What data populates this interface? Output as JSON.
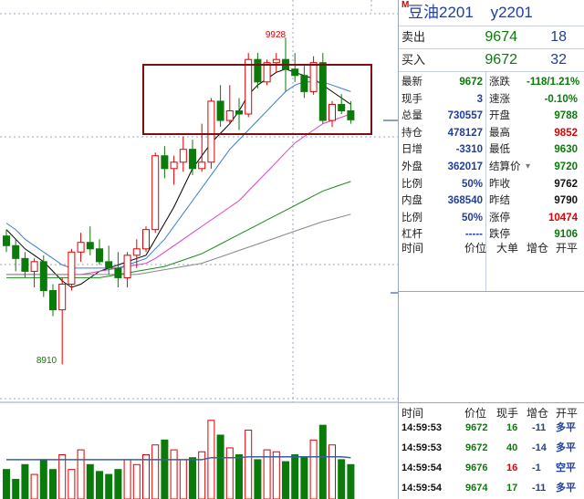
{
  "header": {
    "marker": "M",
    "name": "豆油2201",
    "code": "y2201"
  },
  "bid_ask": [
    {
      "label": "卖出",
      "price": "9674",
      "volume": "18"
    },
    {
      "label": "买入",
      "price": "9672",
      "volume": "32"
    }
  ],
  "quote_left": [
    {
      "label": "最新",
      "value": "9672",
      "color": "green"
    },
    {
      "label": "现手",
      "value": "3",
      "color": "blue"
    },
    {
      "label": "总量",
      "value": "730557",
      "color": "blue"
    },
    {
      "label": "持仓",
      "value": "478127",
      "color": "blue"
    },
    {
      "label": "日增",
      "value": "-3310",
      "color": "blue"
    },
    {
      "label": "外盘",
      "value": "362017",
      "color": "blue"
    },
    {
      "label": "比例",
      "value": "50%",
      "color": "blue"
    },
    {
      "label": "内盘",
      "value": "368540",
      "color": "blue"
    },
    {
      "label": "比例",
      "value": "50%",
      "color": "blue"
    },
    {
      "label": "杠杆",
      "value": "-----",
      "color": "blue"
    }
  ],
  "quote_right": [
    {
      "label": "涨跌",
      "value": "-118/1.21%",
      "color": "green"
    },
    {
      "label": "速涨",
      "value": "-0.10%",
      "color": "green"
    },
    {
      "label": "开盘",
      "value": "9788",
      "color": "green"
    },
    {
      "label": "最高",
      "value": "9852",
      "color": "red"
    },
    {
      "label": "最低",
      "value": "9630",
      "color": "green"
    },
    {
      "label": "结算价",
      "value": "9720",
      "color": "green"
    },
    {
      "label": "昨收",
      "value": "9762",
      "color": "blk"
    },
    {
      "label": "昨结",
      "value": "9790",
      "color": "blk"
    },
    {
      "label": "涨停",
      "value": "10474",
      "color": "red"
    },
    {
      "label": "跌停",
      "value": "9106",
      "color": "green"
    }
  ],
  "settle_arrow": "▾",
  "ticks_header_top": {
    "time": "时间",
    "price": "价位",
    "size": "大单",
    "oi": "增仓",
    "type": "开平"
  },
  "ticks_header_bottom": {
    "time": "时间",
    "price": "价位",
    "size": "现手",
    "oi": "增仓",
    "type": "开平"
  },
  "trades": [
    {
      "time": "14:59:53",
      "price": "9672",
      "size": "16",
      "oi": "-11",
      "type": "多平",
      "size_color": "green",
      "oi_color": "blue"
    },
    {
      "time": "14:59:53",
      "price": "9672",
      "size": "40",
      "oi": "-14",
      "type": "多平",
      "size_color": "green",
      "oi_color": "blue"
    },
    {
      "time": "14:59:54",
      "price": "9676",
      "size": "16",
      "oi": "-1",
      "type": "空平",
      "size_color": "red",
      "oi_color": "blue"
    },
    {
      "time": "14:59:54",
      "price": "9674",
      "size": "17",
      "oi": "-11",
      "type": "多平",
      "size_color": "green",
      "oi_color": "blue"
    }
  ],
  "chart_data": {
    "type": "candlestick",
    "annotations": {
      "high": "9928",
      "low": "8910"
    },
    "candles": [
      [
        9310,
        9330,
        9260,
        9280
      ],
      [
        9280,
        9300,
        9200,
        9240
      ],
      [
        9240,
        9260,
        9180,
        9200
      ],
      [
        9200,
        9240,
        9150,
        9230
      ],
      [
        9230,
        9250,
        9120,
        9140
      ],
      [
        9140,
        9160,
        9060,
        9080
      ],
      [
        9080,
        9180,
        8910,
        9160
      ],
      [
        9160,
        9270,
        9140,
        9260
      ],
      [
        9260,
        9320,
        9230,
        9290
      ],
      [
        9290,
        9340,
        9250,
        9270
      ],
      [
        9270,
        9300,
        9220,
        9230
      ],
      [
        9230,
        9280,
        9190,
        9210
      ],
      [
        9210,
        9260,
        9150,
        9180
      ],
      [
        9180,
        9260,
        9150,
        9250
      ],
      [
        9250,
        9300,
        9210,
        9270
      ],
      [
        9270,
        9340,
        9260,
        9330
      ],
      [
        9330,
        9570,
        9320,
        9560
      ],
      [
        9560,
        9590,
        9490,
        9520
      ],
      [
        9520,
        9560,
        9470,
        9540
      ],
      [
        9540,
        9620,
        9510,
        9580
      ],
      [
        9580,
        9610,
        9500,
        9520
      ],
      [
        9520,
        9660,
        9510,
        9540
      ],
      [
        9540,
        9740,
        9520,
        9730
      ],
      [
        9730,
        9780,
        9650,
        9670
      ],
      [
        9670,
        9780,
        9660,
        9700
      ],
      [
        9700,
        9740,
        9640,
        9690
      ],
      [
        9690,
        9880,
        9680,
        9860
      ],
      [
        9860,
        9880,
        9770,
        9790
      ],
      [
        9790,
        9860,
        9780,
        9850
      ],
      [
        9850,
        9880,
        9820,
        9860
      ],
      [
        9860,
        9928,
        9760,
        9830
      ],
      [
        9830,
        9880,
        9790,
        9810
      ],
      [
        9810,
        9840,
        9740,
        9760
      ],
      [
        9760,
        9870,
        9750,
        9850
      ],
      [
        9850,
        9880,
        9660,
        9670
      ],
      [
        9670,
        9730,
        9650,
        9720
      ],
      [
        9720,
        9752,
        9690,
        9700
      ],
      [
        9700,
        9730,
        9660,
        9672
      ]
    ],
    "ma": [
      {
        "color": "#000000",
        "values": [
          9330,
          9300,
          9270,
          9250,
          9230,
          9200,
          9170,
          9150,
          9160,
          9180,
          9200,
          9210,
          9220,
          9230,
          9240,
          9250,
          9300,
          9350,
          9400,
          9460,
          9520,
          9560,
          9600,
          9630,
          9660,
          9700,
          9750,
          9780,
          9800,
          9820,
          9830,
          9820,
          9810,
          9800,
          9780,
          9760,
          9740,
          9720
        ]
      },
      {
        "color": "#3a7fd0",
        "values": [
          9350,
          9330,
          9300,
          9280,
          9260,
          9240,
          9220,
          9210,
          9210,
          9210,
          9210,
          9210,
          9210,
          9220,
          9230,
          9240,
          9270,
          9300,
          9340,
          9380,
          9420,
          9460,
          9500,
          9540,
          9580,
          9610,
          9640,
          9670,
          9700,
          9730,
          9760,
          9780,
          9790,
          9790,
          9790,
          9780,
          9770,
          9760
        ]
      },
      {
        "color": "#e040c0",
        "values": [
          9190,
          9190,
          9190,
          9190,
          9190,
          9190,
          9190,
          9190,
          9190,
          9195,
          9200,
          9205,
          9210,
          9215,
          9220,
          9225,
          9240,
          9260,
          9280,
          9300,
          9320,
          9340,
          9360,
          9380,
          9400,
          9420,
          9450,
          9480,
          9510,
          9540,
          9570,
          9600,
          9620,
          9640,
          9660,
          9670,
          9680,
          9690
        ]
      },
      {
        "color": "#1a8a1a",
        "values": [
          9180,
          9180,
          9180,
          9180,
          9180,
          9180,
          9180,
          9180,
          9180,
          9180,
          9180,
          9185,
          9190,
          9195,
          9200,
          9205,
          9210,
          9215,
          9225,
          9235,
          9245,
          9255,
          9270,
          9285,
          9300,
          9315,
          9330,
          9345,
          9360,
          9375,
          9390,
          9405,
          9420,
          9435,
          9450,
          9460,
          9470,
          9480
        ]
      },
      {
        "color": "#888888",
        "values": [
          9190,
          9190,
          9190,
          9190,
          9190,
          9190,
          9190,
          9190,
          9190,
          9190,
          9190,
          9190,
          9190,
          9190,
          9190,
          9195,
          9200,
          9205,
          9210,
          9215,
          9220,
          9225,
          9235,
          9245,
          9255,
          9265,
          9275,
          9285,
          9295,
          9305,
          9315,
          9325,
          9335,
          9345,
          9355,
          9362,
          9370,
          9378
        ]
      }
    ],
    "volumes": [
      30,
      20,
      35,
      25,
      40,
      30,
      45,
      30,
      50,
      35,
      28,
      25,
      30,
      40,
      35,
      45,
      55,
      60,
      50,
      40,
      42,
      48,
      80,
      65,
      52,
      45,
      70,
      40,
      50,
      48,
      38,
      45,
      42,
      60,
      75,
      55,
      40,
      35
    ],
    "volume_ma": [
      40,
      40,
      40,
      40,
      40,
      40,
      40,
      40,
      40,
      40,
      40,
      40,
      40,
      40,
      40,
      40,
      40,
      40,
      40,
      40,
      40,
      40,
      42,
      42,
      42,
      42,
      43,
      43,
      43,
      43,
      43,
      43,
      43,
      43,
      43,
      43,
      43,
      42
    ]
  }
}
